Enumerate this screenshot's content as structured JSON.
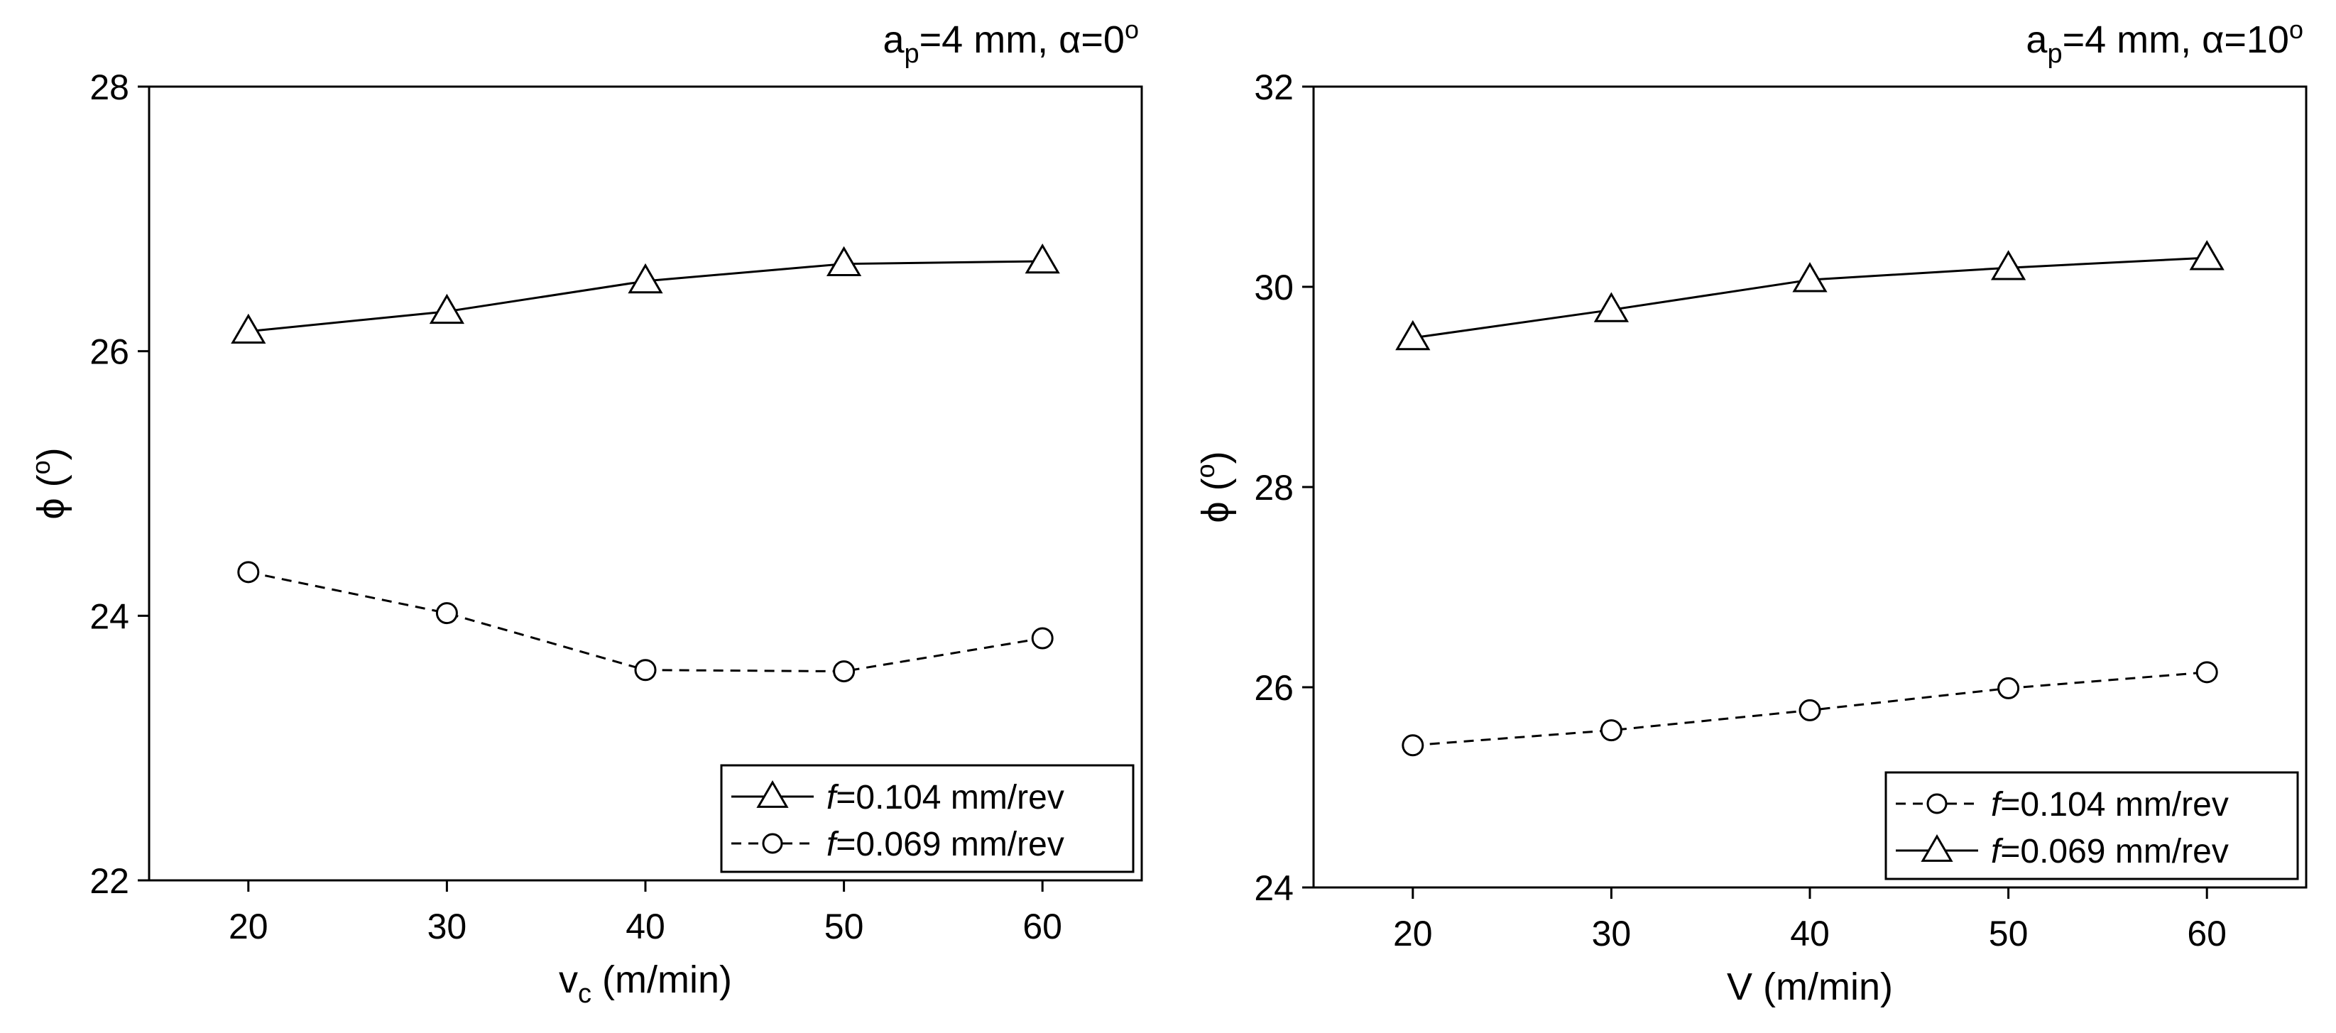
{
  "chart_data": [
    {
      "type": "line",
      "title": "ap=4 mm, α=0°",
      "title_parts": {
        "a": "a",
        "p_sub": "p",
        "rest": "=4 mm, α=0",
        "deg": "o"
      },
      "xlabel": "vc (m/min)",
      "xlabel_parts": {
        "main": "v",
        "sub": "c",
        "rest": " (m/min)"
      },
      "ylabel": "ϕ (°)",
      "ylabel_parts": {
        "main": "ϕ (",
        "deg": "o",
        "close": ")"
      },
      "x": [
        20,
        30,
        40,
        50,
        60
      ],
      "xlim": [
        15,
        65
      ],
      "ylim": [
        22,
        28
      ],
      "x_ticks": [
        20,
        30,
        40,
        50,
        60
      ],
      "y_ticks": [
        22,
        24,
        26,
        28
      ],
      "legend_position": "bottom-right",
      "series": [
        {
          "name": "f=0.104 mm/rev",
          "name_parts": {
            "italic": "f",
            "rest": "=0.104 mm/rev"
          },
          "marker": "triangle",
          "line": "solid",
          "values": [
            26.15,
            26.3,
            26.53,
            26.66,
            26.68
          ]
        },
        {
          "name": "f=0.069 mm/rev",
          "name_parts": {
            "italic": "f",
            "rest": "=0.069 mm/rev"
          },
          "marker": "circle",
          "line": "dashed",
          "values": [
            24.33,
            24.02,
            23.59,
            23.58,
            23.83
          ]
        }
      ]
    },
    {
      "type": "line",
      "title": "ap=4 mm, α=10°",
      "title_parts": {
        "a": "a",
        "p_sub": "p",
        "rest": "=4 mm, α=10",
        "deg": "o"
      },
      "xlabel": "V (m/min)",
      "xlabel_parts": {
        "main": "V",
        "sub": "",
        "rest": " (m/min)"
      },
      "ylabel": "ϕ (°)",
      "ylabel_parts": {
        "main": "ϕ (",
        "deg": "o",
        "close": ")"
      },
      "x": [
        20,
        30,
        40,
        50,
        60
      ],
      "xlim": [
        15,
        65
      ],
      "ylim": [
        24,
        32
      ],
      "x_ticks": [
        20,
        30,
        40,
        50,
        60
      ],
      "y_ticks": [
        24,
        26,
        28,
        30,
        32
      ],
      "legend_position": "bottom-right",
      "series": [
        {
          "name": "f=0.104 mm/rev",
          "name_parts": {
            "italic": "f",
            "rest": "=0.104 mm/rev"
          },
          "marker": "circle",
          "line": "dashed",
          "values": [
            25.42,
            25.57,
            25.77,
            25.99,
            26.15
          ]
        },
        {
          "name": "f=0.069 mm/rev",
          "name_parts": {
            "italic": "f",
            "rest": "=0.069 mm/rev"
          },
          "marker": "triangle",
          "line": "solid",
          "values": [
            29.49,
            29.77,
            30.07,
            30.19,
            30.29
          ]
        }
      ]
    }
  ]
}
